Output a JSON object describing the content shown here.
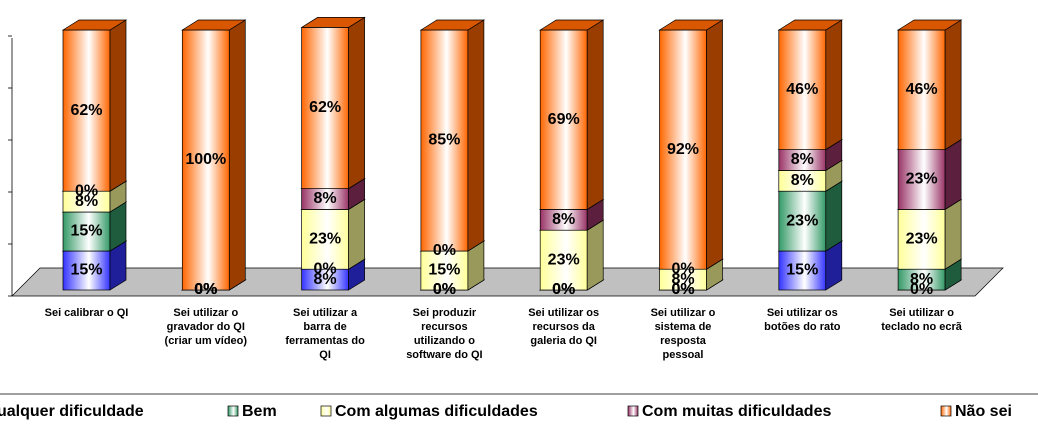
{
  "chart_data": {
    "type": "bar3d_stacked",
    "categories": [
      "Sei calibrar o QI",
      "Sei utilizar o\ngravador do QI\n(criar um vídeo)",
      "Sei utilizar a\nbarra de\nferramentas do\nQI",
      "Sei produzir\nrecursos\nutilizando o\nsoftware do QI",
      "Sei utilizar os\nrecursos da\ngaleria do QI",
      "Sei utilizar o\nsistema de\nresposta\npessoal",
      "Sei utilizar os\nbotões do rato",
      "Sei utilizar o\nteclado no ecrã"
    ],
    "series": [
      {
        "name": "ualquer dificuldade",
        "color": "#3333ff",
        "values": [
          15,
          0,
          8,
          0,
          0,
          0,
          15,
          0
        ],
        "value_labels": [
          "15%",
          "0%",
          "8%",
          "0%",
          "0%",
          "0%",
          "15%",
          "0%"
        ]
      },
      {
        "name": "Bem",
        "color": "#339966",
        "values": [
          15,
          0,
          0,
          0,
          0,
          0,
          23,
          8
        ],
        "value_labels": [
          "15%",
          "0%",
          "0%",
          "0%",
          "0%",
          "0%",
          "23%",
          "8%"
        ]
      },
      {
        "name": "Com algumas dificuldades",
        "color": "#ffff99",
        "values": [
          8,
          0,
          23,
          15,
          23,
          8,
          8,
          23
        ],
        "value_labels": [
          "8%",
          "0%",
          "23%",
          "15%",
          "23%",
          "8%",
          "8%",
          "23%"
        ]
      },
      {
        "name": "Com muitas dificuldades",
        "color": "#993366",
        "values": [
          0,
          0,
          8,
          0,
          8,
          0,
          8,
          23
        ],
        "value_labels": [
          "0%",
          "0%",
          "8%",
          "0%",
          "8%",
          "0%",
          "8%",
          "23%"
        ]
      },
      {
        "name": "Não sei",
        "color": "#ff6600",
        "values": [
          62,
          100,
          62,
          85,
          69,
          92,
          46,
          46
        ],
        "value_labels": [
          "62%",
          "100%",
          "62%",
          "85%",
          "69%",
          "92%",
          "46%",
          "46%"
        ]
      }
    ],
    "ylim": [
      0,
      100
    ],
    "yticks": [
      0,
      20,
      40,
      60,
      80,
      100
    ]
  }
}
